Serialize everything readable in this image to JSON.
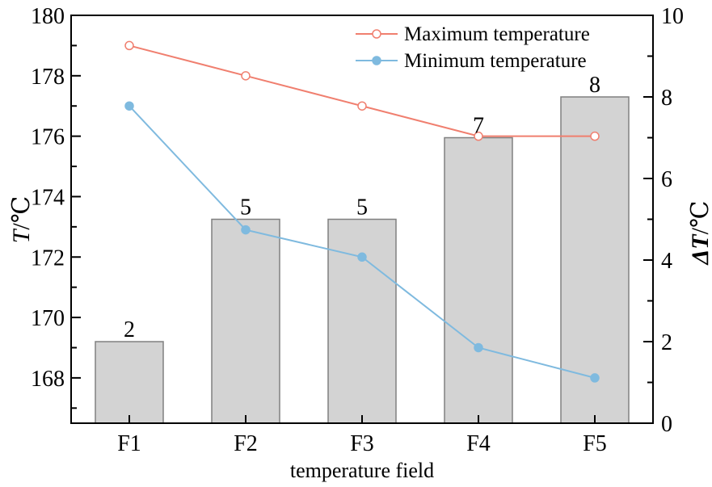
{
  "chart_data": {
    "type": "bar",
    "categories": [
      "F1",
      "F2",
      "F3",
      "F4",
      "F5"
    ],
    "xlabel": "temperature field",
    "y_left": {
      "label_symbol": "T",
      "label_unit": "/℃",
      "range": [
        166.5,
        180
      ],
      "ticks": [
        168,
        170,
        172,
        174,
        176,
        178,
        180
      ],
      "tick_labels": [
        "168",
        "170",
        "172",
        "174",
        "176",
        "178",
        "180"
      ]
    },
    "y_right": {
      "label_symbol": "ΔT",
      "label_unit": "/℃",
      "range": [
        0,
        10
      ],
      "ticks": [
        0,
        2,
        4,
        6,
        8,
        10
      ],
      "tick_labels": [
        "0",
        "2",
        "4",
        "6",
        "8",
        "10"
      ]
    },
    "bars": {
      "axis": "right",
      "values": [
        2,
        5,
        5,
        7,
        8
      ],
      "labels": [
        "2",
        "5",
        "5",
        "7",
        "8"
      ],
      "color": "#d3d3d3",
      "edge_color": "#808080"
    },
    "series": [
      {
        "name": "Maximum temperature",
        "axis": "left",
        "values": [
          179,
          178,
          177,
          176,
          176
        ],
        "color": "#f07f6f",
        "marker": "open-circle"
      },
      {
        "name": "Minimum temperature",
        "axis": "left",
        "values": [
          177,
          172.9,
          172,
          169,
          168
        ],
        "color": "#7fbadf",
        "marker": "filled-circle"
      }
    ],
    "legend_position": "top-right",
    "grid": false
  }
}
